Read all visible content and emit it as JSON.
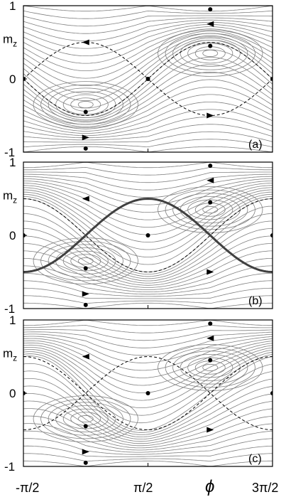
{
  "axes": {
    "y_label": "m",
    "y_label_sub": "z",
    "y_ticks": [
      "1",
      "0",
      "-1"
    ],
    "x_ticks": [
      "-π/2",
      "π/2",
      "3π/2"
    ],
    "x_label": "ϕ"
  },
  "panels": [
    {
      "label": "(a)",
      "phase_shift": 0.0,
      "separatrix_bold": false,
      "pinch": 0.0
    },
    {
      "label": "(b)",
      "phase_shift": 1.5708,
      "separatrix_bold": true,
      "pinch": 0.0
    },
    {
      "label": "(c)",
      "phase_shift": 1.5708,
      "separatrix_bold": false,
      "pinch": 0.55
    }
  ],
  "colors": {
    "stream": "#808080",
    "separatrix": "#000000",
    "bold_curve": "#404040",
    "frame": "#000000"
  }
}
